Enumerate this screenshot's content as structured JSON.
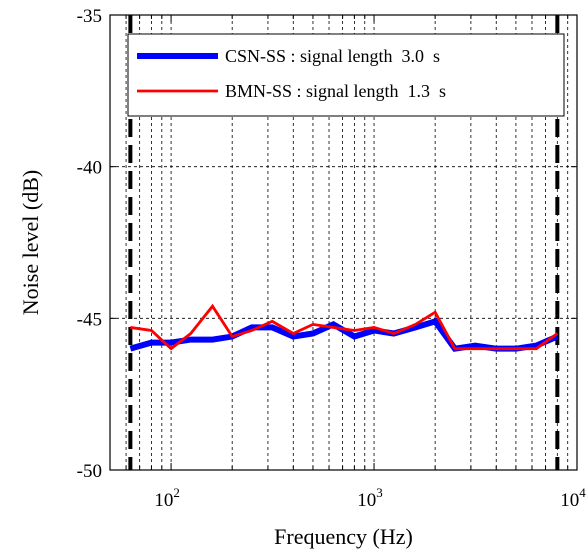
{
  "chart_data": {
    "type": "line",
    "xlabel": "Frequency (Hz)",
    "ylabel": "Noise level (dB)",
    "xscale": "log",
    "xlim": [
      50,
      10000
    ],
    "ylim": [
      -50,
      -35
    ],
    "grid": true,
    "legend_position": "top-right",
    "y_ticks": [
      {
        "value": -50,
        "label": "-50"
      },
      {
        "value": -45,
        "label": "-45"
      },
      {
        "value": -40,
        "label": "-40"
      },
      {
        "value": -35,
        "label": "-35"
      }
    ],
    "x_ticks": [
      {
        "value": 100,
        "base": "10",
        "exp": "2"
      },
      {
        "value": 1000,
        "base": "10",
        "exp": "3"
      },
      {
        "value": 10000,
        "base": "10",
        "exp": "4"
      }
    ],
    "band_limits": [
      63,
      8000
    ],
    "series": [
      {
        "name": "CSN-SS : signal length  3.0  s",
        "color": "#0000ff",
        "x": [
          63,
          80,
          100,
          125,
          160,
          200,
          250,
          315,
          400,
          500,
          630,
          800,
          1000,
          1250,
          1600,
          2000,
          2500,
          3150,
          4000,
          5000,
          6300,
          8000
        ],
        "y": [
          -46.0,
          -45.8,
          -45.8,
          -45.7,
          -45.7,
          -45.6,
          -45.3,
          -45.3,
          -45.6,
          -45.5,
          -45.2,
          -45.6,
          -45.4,
          -45.5,
          -45.3,
          -45.1,
          -46.0,
          -45.9,
          -46.0,
          -46.0,
          -45.9,
          -45.6
        ]
      },
      {
        "name": "BMN-SS : signal length  1.3  s",
        "color": "#ff0000",
        "x": [
          63,
          80,
          100,
          125,
          160,
          200,
          250,
          315,
          400,
          500,
          630,
          800,
          1000,
          1250,
          1600,
          2000,
          2500,
          3150,
          4000,
          5000,
          6300,
          8000
        ],
        "y": [
          -45.3,
          -45.4,
          -46.0,
          -45.5,
          -44.6,
          -45.6,
          -45.4,
          -45.1,
          -45.5,
          -45.2,
          -45.3,
          -45.4,
          -45.3,
          -45.5,
          -45.2,
          -44.8,
          -46.0,
          -46.0,
          -46.0,
          -46.0,
          -46.0,
          -45.5
        ]
      }
    ]
  }
}
